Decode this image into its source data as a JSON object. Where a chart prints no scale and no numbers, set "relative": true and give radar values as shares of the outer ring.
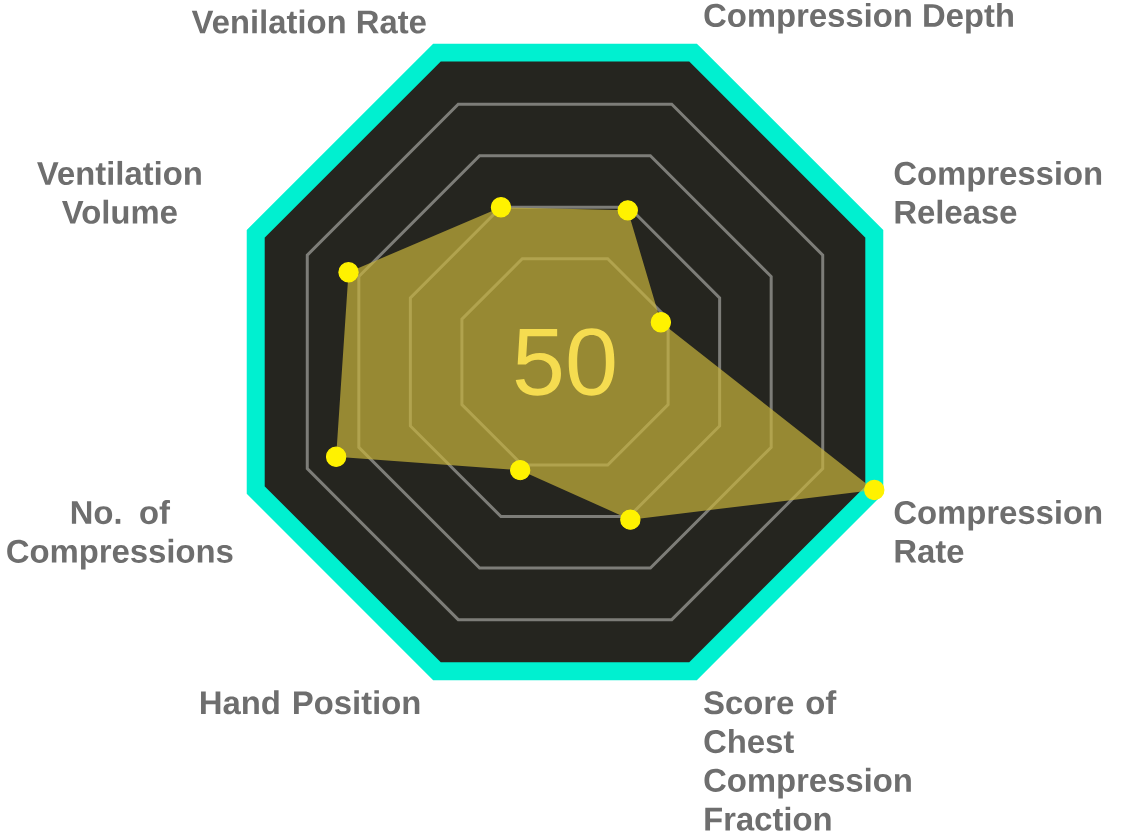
{
  "chart_data": {
    "type": "radar",
    "relative": true,
    "grid": true,
    "marker": "circle",
    "categories": [
      "Compression Depth",
      "Compression Release",
      "Compression Rate",
      "Score of Chest Compression Fraction",
      "Hand Position",
      "No. of Compressions",
      "Ventilation Volume",
      "Venilation Rate"
    ],
    "series": [
      {
        "color": "#c8b43c",
        "values": [
          0.49,
          0.31,
          1,
          0.51,
          0.35,
          0.74,
          0.7,
          0.5
        ]
      }
    ],
    "annotations": [
      "50"
    ]
  }
}
